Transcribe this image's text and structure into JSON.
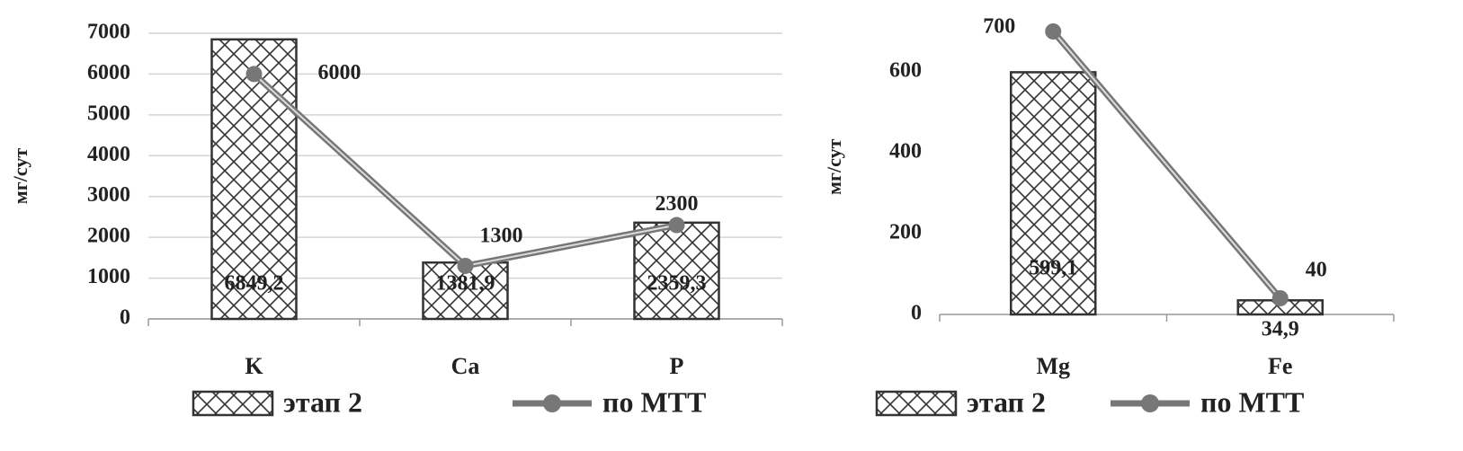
{
  "chart_data": [
    {
      "type": "combo",
      "y_label": "мг/сут",
      "categories": [
        "K",
        "Ca",
        "P"
      ],
      "ylim": [
        0,
        7000
      ],
      "yticks": [
        0,
        1000,
        2000,
        3000,
        4000,
        5000,
        6000,
        7000
      ],
      "grid": true,
      "series": [
        {
          "name": "этап 2",
          "type": "bar",
          "color": "#333333",
          "values": [
            6849.2,
            1381.9,
            2359.3
          ],
          "value_labels": [
            "6849,2",
            "1381,9",
            "2359,3"
          ]
        },
        {
          "name": "по МТТ",
          "type": "line",
          "color": "#777777",
          "values": [
            6000,
            1300,
            2300
          ]
        }
      ]
    },
    {
      "type": "combo",
      "y_label": "мг/сут",
      "categories": [
        "Mg",
        "Fe"
      ],
      "ylim": [
        0,
        730
      ],
      "yticks": [
        0,
        200,
        400,
        600
      ],
      "grid": false,
      "series": [
        {
          "name": "этап 2",
          "type": "bar",
          "color": "#333333",
          "values": [
            599.1,
            34.9
          ],
          "value_labels": [
            "599,1",
            "34,9"
          ]
        },
        {
          "name": "по МТТ",
          "type": "line",
          "color": "#777777",
          "values": [
            700,
            40
          ]
        }
      ]
    }
  ]
}
